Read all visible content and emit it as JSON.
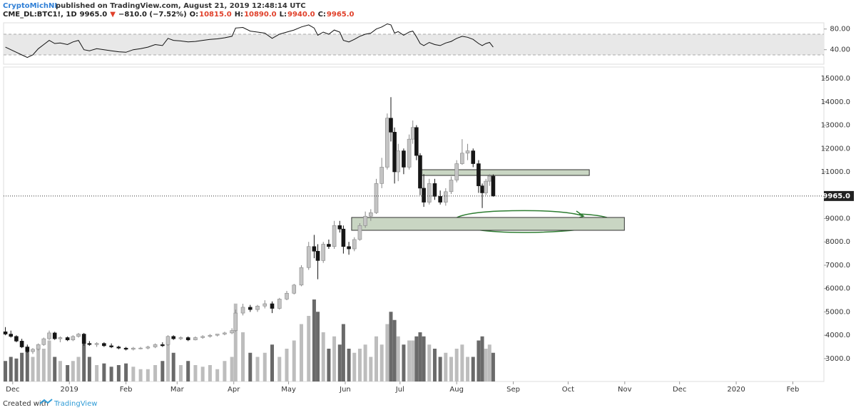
{
  "header": {
    "author": "CryptoMichNL",
    "published": "published on TradingView.com, August 21, 2019 12:48:14 UTC"
  },
  "legend": {
    "symbol": "CME_DL:BTC1!, 1D",
    "last": "9965.0",
    "arrow": "▼",
    "change": "−810.0 (−7.52%)",
    "o_label": "O:",
    "o": "10815.0",
    "h_label": "H:",
    "h": "10890.0",
    "l_label": "L:",
    "l": "9940.0",
    "c_label": "C:",
    "c": "9965.0"
  },
  "footer": {
    "created": "Created with",
    "brand": "TradingView"
  },
  "chart_data": {
    "type": "candlestick",
    "up_color": "#c4c4c4",
    "down_color": "#161616",
    "xlim": [
      -5,
      444
    ],
    "xticks": [
      {
        "value": 0,
        "label": "Dec"
      },
      {
        "value": 31,
        "label": "2019"
      },
      {
        "value": 62,
        "label": "Feb"
      },
      {
        "value": 90,
        "label": "Mar"
      },
      {
        "value": 121,
        "label": "Apr"
      },
      {
        "value": 151,
        "label": "May"
      },
      {
        "value": 182,
        "label": "Jun"
      },
      {
        "value": 212,
        "label": "Jul"
      },
      {
        "value": 243,
        "label": "Aug"
      },
      {
        "value": 274,
        "label": "Sep"
      },
      {
        "value": 304,
        "label": "Oct"
      },
      {
        "value": 335,
        "label": "Nov"
      },
      {
        "value": 365,
        "label": "Dec"
      },
      {
        "value": 396,
        "label": "2020"
      },
      {
        "value": 427,
        "label": "Feb"
      }
    ],
    "ylim": [
      2020,
      15490
    ],
    "yticks": [
      {
        "value": 3000,
        "label": "3000.0"
      },
      {
        "value": 4000,
        "label": "4000.0"
      },
      {
        "value": 5000,
        "label": "5000.0"
      },
      {
        "value": 6000,
        "label": "6000.0"
      },
      {
        "value": 7000,
        "label": "7000.0"
      },
      {
        "value": 8000,
        "label": "8000.0"
      },
      {
        "value": 9000,
        "label": "9000.0"
      },
      {
        "value": 11000,
        "label": "11000.0"
      },
      {
        "value": 12000,
        "label": "12000.0"
      },
      {
        "value": 13000,
        "label": "13000.0"
      },
      {
        "value": 14000,
        "label": "14000.0"
      },
      {
        "value": 15000,
        "label": "15000.0"
      }
    ],
    "last_price": {
      "value": 9965,
      "label": "9965.0"
    },
    "x": [
      -4,
      -1,
      2,
      5,
      8,
      11,
      14,
      17,
      20,
      23,
      26,
      30,
      33,
      36,
      39,
      42,
      46,
      50,
      54,
      58,
      62,
      66,
      70,
      74,
      78,
      82,
      85,
      88,
      92,
      96,
      100,
      104,
      108,
      112,
      116,
      120,
      122,
      126,
      130,
      134,
      138,
      142,
      146,
      150,
      154,
      158,
      162,
      165,
      167,
      170,
      173,
      176,
      179,
      181,
      184,
      187,
      190,
      193,
      196,
      199,
      202,
      205,
      207,
      209,
      211,
      214,
      217,
      219,
      221,
      223,
      225,
      228,
      231,
      234,
      237,
      240,
      243,
      246,
      249,
      252,
      255,
      257,
      259,
      261,
      263
    ],
    "open": [
      4150,
      4050,
      3950,
      3750,
      3500,
      3300,
      3400,
      3600,
      3850,
      4100,
      3850,
      3900,
      3800,
      3950,
      4050,
      3650,
      3600,
      3650,
      3550,
      3500,
      3450,
      3400,
      3450,
      3450,
      3500,
      3600,
      3600,
      3950,
      3850,
      3900,
      3800,
      3900,
      3950,
      4000,
      4050,
      4100,
      4200,
      4950,
      5200,
      5100,
      5250,
      5350,
      5150,
      5550,
      5800,
      6150,
      6900,
      7800,
      7600,
      7200,
      7900,
      7800,
      8700,
      8550,
      7800,
      7700,
      8100,
      8700,
      9100,
      9250,
      10500,
      11200,
      13300,
      12700,
      11000,
      11900,
      11200,
      12400,
      12900,
      11700,
      10300,
      9700,
      10500,
      9950,
      9700,
      10150,
      10650,
      11350,
      11800,
      11900,
      11350,
      10400,
      10100,
      10600,
      10815
    ],
    "high": [
      4350,
      4200,
      4000,
      3850,
      3600,
      3450,
      3650,
      3900,
      4200,
      4150,
      3950,
      3950,
      4000,
      4100,
      4100,
      3750,
      3700,
      3700,
      3650,
      3550,
      3500,
      3500,
      3500,
      3550,
      3650,
      3700,
      4000,
      4000,
      3950,
      3950,
      3950,
      4000,
      4050,
      4050,
      4150,
      4300,
      5100,
      5350,
      5300,
      5300,
      5500,
      5450,
      5600,
      5900,
      6200,
      7000,
      8000,
      8300,
      7900,
      8000,
      8100,
      8900,
      8900,
      8700,
      8000,
      8200,
      8800,
      9300,
      9400,
      10700,
      11600,
      13500,
      14200,
      12900,
      12200,
      12000,
      12600,
      13200,
      13000,
      11800,
      10900,
      10700,
      10700,
      10200,
      10300,
      10800,
      11500,
      12400,
      12200,
      12000,
      11500,
      10500,
      10700,
      10900,
      10890
    ],
    "low": [
      4000,
      3900,
      3700,
      3450,
      3250,
      3200,
      3350,
      3550,
      3800,
      3800,
      3700,
      3750,
      3750,
      3900,
      3550,
      3550,
      3500,
      3500,
      3450,
      3400,
      3350,
      3350,
      3400,
      3400,
      3450,
      3500,
      3550,
      3800,
      3800,
      3750,
      3780,
      3850,
      3900,
      3950,
      4000,
      4050,
      4150,
      4850,
      5000,
      5000,
      5150,
      4950,
      5100,
      5500,
      5750,
      6100,
      6800,
      7300,
      6400,
      7100,
      7700,
      7700,
      8400,
      7500,
      7450,
      7600,
      8050,
      8600,
      8900,
      9200,
      10300,
      11100,
      12300,
      10500,
      10600,
      10900,
      11100,
      12200,
      11500,
      10000,
      9500,
      9600,
      9800,
      9600,
      9550,
      10050,
      10550,
      11300,
      11500,
      11200,
      10100,
      9450,
      10000,
      10400,
      9940
    ],
    "close": [
      4050,
      3950,
      3750,
      3500,
      3300,
      3400,
      3600,
      3850,
      4100,
      3850,
      3900,
      3800,
      3950,
      4050,
      3650,
      3600,
      3650,
      3550,
      3500,
      3450,
      3400,
      3450,
      3450,
      3500,
      3600,
      3550,
      3950,
      3850,
      3900,
      3800,
      3900,
      3950,
      4000,
      4050,
      4100,
      4200,
      4950,
      5200,
      5100,
      5250,
      5350,
      5150,
      5550,
      5800,
      6150,
      6900,
      7800,
      7600,
      7200,
      7900,
      7800,
      8700,
      8550,
      7800,
      7700,
      8100,
      8700,
      9100,
      9250,
      10500,
      11200,
      13300,
      12700,
      11000,
      11900,
      11200,
      12400,
      12900,
      11700,
      10300,
      9700,
      10500,
      9950,
      9700,
      10150,
      10650,
      11350,
      11800,
      11900,
      11350,
      10400,
      10100,
      10600,
      10815,
      9965
    ],
    "volume": {
      "vlim": [
        0,
        100
      ],
      "up_color": "#bdbdbd",
      "down_color": "#6a6a6a",
      "values": [
        25,
        30,
        28,
        35,
        40,
        30,
        45,
        40,
        50,
        30,
        25,
        20,
        25,
        30,
        55,
        30,
        20,
        22,
        18,
        20,
        22,
        18,
        15,
        15,
        20,
        25,
        50,
        35,
        20,
        25,
        20,
        18,
        20,
        15,
        25,
        30,
        95,
        60,
        35,
        30,
        35,
        45,
        30,
        40,
        50,
        70,
        80,
        100,
        85,
        60,
        40,
        55,
        45,
        70,
        40,
        35,
        40,
        45,
        30,
        55,
        45,
        70,
        85,
        75,
        55,
        45,
        50,
        50,
        55,
        60,
        55,
        45,
        40,
        30,
        35,
        30,
        40,
        45,
        30,
        30,
        50,
        55,
        40,
        45,
        35
      ]
    },
    "zones": [
      {
        "from": 223.4,
        "to": 315.6,
        "low": 10847,
        "high": 11092,
        "color": "#c9d6c3"
      },
      {
        "from": 185.5,
        "to": 334.8,
        "low": 8496,
        "high": 9046,
        "color": "#c9d6c3"
      }
    ],
    "rsi": {
      "color": "#111111",
      "band": [
        30,
        70
      ],
      "ylim": [
        12,
        92
      ],
      "yticks": [
        {
          "value": 40,
          "label": "40.00"
        },
        {
          "value": 80,
          "label": "80.00"
        }
      ],
      "values": [
        45,
        40,
        35,
        30,
        25,
        30,
        42,
        50,
        58,
        52,
        53,
        50,
        55,
        58,
        40,
        38,
        42,
        40,
        38,
        36,
        35,
        40,
        42,
        45,
        50,
        48,
        62,
        58,
        57,
        55,
        56,
        58,
        60,
        61,
        63,
        66,
        82,
        83,
        76,
        74,
        72,
        62,
        70,
        74,
        78,
        84,
        88,
        82,
        68,
        74,
        70,
        78,
        74,
        58,
        55,
        60,
        66,
        70,
        72,
        80,
        84,
        90,
        88,
        72,
        75,
        68,
        74,
        76,
        65,
        52,
        48,
        54,
        50,
        48,
        53,
        56,
        62,
        66,
        64,
        60,
        52,
        48,
        52,
        54,
        45
      ]
    }
  }
}
